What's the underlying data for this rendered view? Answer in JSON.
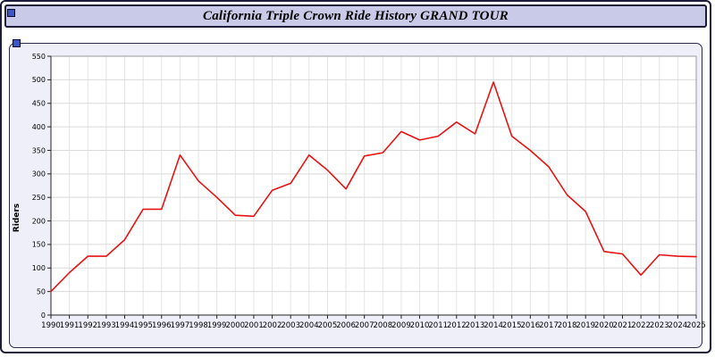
{
  "header": {
    "title": "California Triple Crown Ride History GRAND TOUR"
  },
  "colors": {
    "titlebar_bg": "#c9c9e8",
    "panel_bg": "#efeff9",
    "line": "#e81212",
    "accent_square": "#3a57c8",
    "grid_major": "#d9d9d9",
    "grid_minor": "#e4e4e4",
    "border_dark": "#1c1c3a"
  },
  "chart_data": {
    "type": "line",
    "title": "California Triple Crown Ride History GRAND TOUR",
    "xlabel": "",
    "ylabel": "Riders",
    "ylim": [
      0,
      550
    ],
    "ytick_step": 50,
    "grid": true,
    "legend": false,
    "series_color": "#e81212",
    "x": [
      1990,
      1991,
      1992,
      1993,
      1994,
      1995,
      1996,
      1997,
      1998,
      1999,
      2000,
      2001,
      2002,
      2003,
      2004,
      2005,
      2006,
      2007,
      2008,
      2009,
      2010,
      2011,
      2012,
      2013,
      2014,
      2015,
      2016,
      2017,
      2018,
      2019,
      2020,
      2021,
      2022,
      2023,
      2024,
      2025
    ],
    "values": [
      50,
      90,
      125,
      125,
      160,
      225,
      225,
      340,
      285,
      250,
      212,
      210,
      265,
      280,
      340,
      308,
      268,
      338,
      345,
      390,
      372,
      380,
      410,
      385,
      495,
      380,
      350,
      315,
      255,
      220,
      135,
      130,
      85,
      128,
      125,
      124
    ]
  }
}
